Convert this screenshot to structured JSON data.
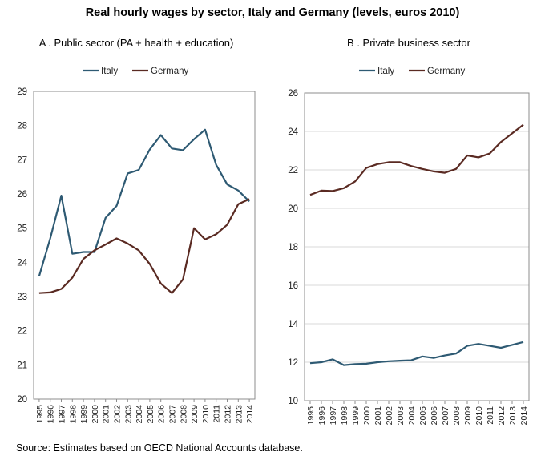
{
  "page": {
    "title": "Real hourly wages by sector, Italy and Germany (levels, euros 2010)",
    "source": "Source: Estimates based on OECD National Accounts database."
  },
  "colors": {
    "italy": "#2e5a73",
    "germany": "#5a2a22"
  },
  "chart_data": [
    {
      "type": "line",
      "title": "A . Public sector (PA + health + education)",
      "x": [
        "1995",
        "1996",
        "1997",
        "1998",
        "1999",
        "2000",
        "2001",
        "2002",
        "2003",
        "2004",
        "2005",
        "2006",
        "2007",
        "2008",
        "2009",
        "2010",
        "2011",
        "2012",
        "2013",
        "2014"
      ],
      "ylim": [
        20,
        29
      ],
      "yticks": [
        "20",
        "21",
        "22",
        "23",
        "24",
        "25",
        "26",
        "27",
        "28",
        "29"
      ],
      "legend_position": "top-center",
      "grid": false,
      "series": [
        {
          "name": "Italy",
          "color": "#2e5a73",
          "values": [
            23.6,
            24.7,
            25.95,
            24.25,
            24.3,
            24.3,
            25.3,
            25.65,
            26.6,
            26.7,
            27.3,
            27.72,
            27.33,
            27.28,
            27.6,
            27.88,
            26.85,
            26.28,
            26.1,
            25.78
          ]
        },
        {
          "name": "Germany",
          "color": "#5a2a22",
          "values": [
            23.1,
            23.12,
            23.22,
            23.55,
            24.1,
            24.35,
            24.52,
            24.7,
            24.55,
            24.35,
            23.95,
            23.38,
            23.1,
            23.5,
            25.0,
            24.67,
            24.82,
            25.1,
            25.7,
            25.85
          ]
        }
      ]
    },
    {
      "type": "line",
      "title": "B . Private business sector",
      "x": [
        "1995",
        "1996",
        "1997",
        "1998",
        "1999",
        "2000",
        "2001",
        "2002",
        "2003",
        "2004",
        "2005",
        "2006",
        "2007",
        "2008",
        "2009",
        "2010",
        "2011",
        "2012",
        "2013",
        "2014"
      ],
      "ylim": [
        10,
        26
      ],
      "yticks": [
        "10",
        "12",
        "14",
        "16",
        "18",
        "20",
        "22",
        "24",
        "26"
      ],
      "legend_position": "top-center",
      "grid": true,
      "series": [
        {
          "name": "Italy",
          "color": "#2e5a73",
          "values": [
            11.95,
            12.0,
            12.15,
            11.85,
            11.9,
            11.92,
            12.0,
            12.05,
            12.08,
            12.1,
            12.3,
            12.22,
            12.35,
            12.45,
            12.85,
            12.95,
            12.85,
            12.75,
            12.9,
            13.05
          ]
        },
        {
          "name": "Germany",
          "color": "#5a2a22",
          "values": [
            20.7,
            20.92,
            20.9,
            21.05,
            21.4,
            22.1,
            22.3,
            22.4,
            22.4,
            22.2,
            22.05,
            21.92,
            21.85,
            22.05,
            22.75,
            22.65,
            22.85,
            23.45,
            23.9,
            24.35
          ]
        }
      ]
    }
  ]
}
